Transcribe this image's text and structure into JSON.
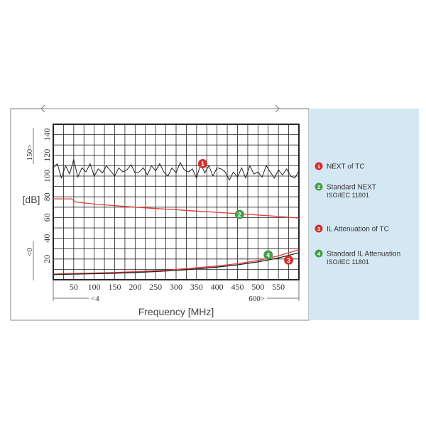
{
  "chart_data": {
    "type": "line",
    "xlabel": "Frequency [MHz]",
    "ylabel": "[dB]",
    "xlim": [
      0,
      600
    ],
    "ylim": [
      0,
      150
    ],
    "x_ticks": [
      50,
      100,
      150,
      200,
      250,
      300,
      350,
      400,
      450,
      500,
      550
    ],
    "y_ticks": [
      20,
      40,
      60,
      80,
      100,
      120,
      140
    ],
    "grid": true,
    "range_markers": {
      "x_left": "4",
      "x_right": "600",
      "y_top": "150",
      "y_bottom": "0"
    },
    "series": [
      {
        "name": "NEXT of TC",
        "color": "#222222",
        "marker": "1",
        "marker_color": "#d32f2f",
        "x": [
          0,
          10,
          20,
          30,
          40,
          50,
          60,
          70,
          80,
          90,
          100,
          110,
          120,
          130,
          140,
          150,
          160,
          170,
          180,
          190,
          200,
          210,
          220,
          230,
          240,
          250,
          260,
          270,
          280,
          290,
          300,
          310,
          320,
          330,
          340,
          350,
          360,
          370,
          380,
          390,
          400,
          410,
          420,
          430,
          440,
          450,
          460,
          470,
          480,
          490,
          500,
          510,
          520,
          530,
          540,
          550,
          560,
          570,
          580,
          590,
          600
        ],
        "y": [
          108,
          112,
          98,
          110,
          102,
          116,
          99,
          108,
          104,
          112,
          100,
          107,
          103,
          110,
          105,
          100,
          108,
          104,
          106,
          111,
          103,
          104,
          108,
          101,
          110,
          105,
          112,
          104,
          100,
          108,
          103,
          113,
          106,
          104,
          107,
          98,
          112,
          103,
          110,
          100,
          108,
          107,
          104,
          96,
          104,
          99,
          108,
          98,
          110,
          102,
          104,
          99,
          110,
          104,
          98,
          106,
          101,
          107,
          100,
          98,
          105
        ]
      },
      {
        "name": "Standard NEXT ISO/IEC 11801",
        "color": "#e53935",
        "marker": "2",
        "marker_color": "#43a047",
        "x": [
          0,
          44,
          55,
          100,
          150,
          200,
          250,
          300,
          350,
          400,
          450,
          500,
          550,
          600
        ],
        "y": [
          78,
          78,
          75,
          73,
          71.5,
          70,
          68.7,
          67.5,
          66.2,
          65,
          63.8,
          62.5,
          61,
          59.5
        ]
      },
      {
        "name": "IL Attenuation of TC",
        "color": "#e53935",
        "marker": "3",
        "marker_color": "#d32f2f",
        "x": [
          0,
          50,
          100,
          150,
          200,
          250,
          300,
          350,
          400,
          450,
          500,
          550,
          600
        ],
        "y": [
          5.5,
          6,
          6.5,
          7,
          7.8,
          8.8,
          10,
          11.5,
          13.3,
          15.5,
          18.5,
          23,
          29
        ]
      },
      {
        "name": "Standard IL Attenuation ISO/IEC 11801",
        "color": "#222222",
        "marker": "4",
        "marker_color": "#43a047",
        "x": [
          0,
          50,
          100,
          150,
          200,
          250,
          300,
          350,
          400,
          450,
          500,
          550,
          600
        ],
        "y": [
          5,
          5.4,
          5.8,
          6.3,
          7,
          7.9,
          9,
          10.4,
          12.2,
          14.4,
          17.2,
          21,
          26
        ]
      }
    ],
    "annotations": [
      {
        "marker": "1",
        "x": 365,
        "y": 112
      },
      {
        "marker": "2",
        "x": 455,
        "y": 63
      },
      {
        "marker": "3",
        "x": 575,
        "y": 19
      },
      {
        "marker": "4",
        "x": 525,
        "y": 24
      }
    ]
  },
  "legend": [
    {
      "marker": "1",
      "marker_color": "#d32f2f",
      "line1": "NEXT of TC",
      "line2": ""
    },
    {
      "marker": "2",
      "marker_color": "#43a047",
      "line1": "Standard NEXT",
      "line2": "ISO/IEC 11801"
    },
    {
      "marker": "3",
      "marker_color": "#d32f2f",
      "line1": "IL Attenuation of TC",
      "line2": ""
    },
    {
      "marker": "4",
      "marker_color": "#43a047",
      "line1": "Standard IL Attenuation",
      "line2": "ISO/IEC 11801"
    }
  ],
  "colors": {
    "legend_panel": "#d4e8f3",
    "grid": "#222222",
    "frame": "#888888"
  }
}
